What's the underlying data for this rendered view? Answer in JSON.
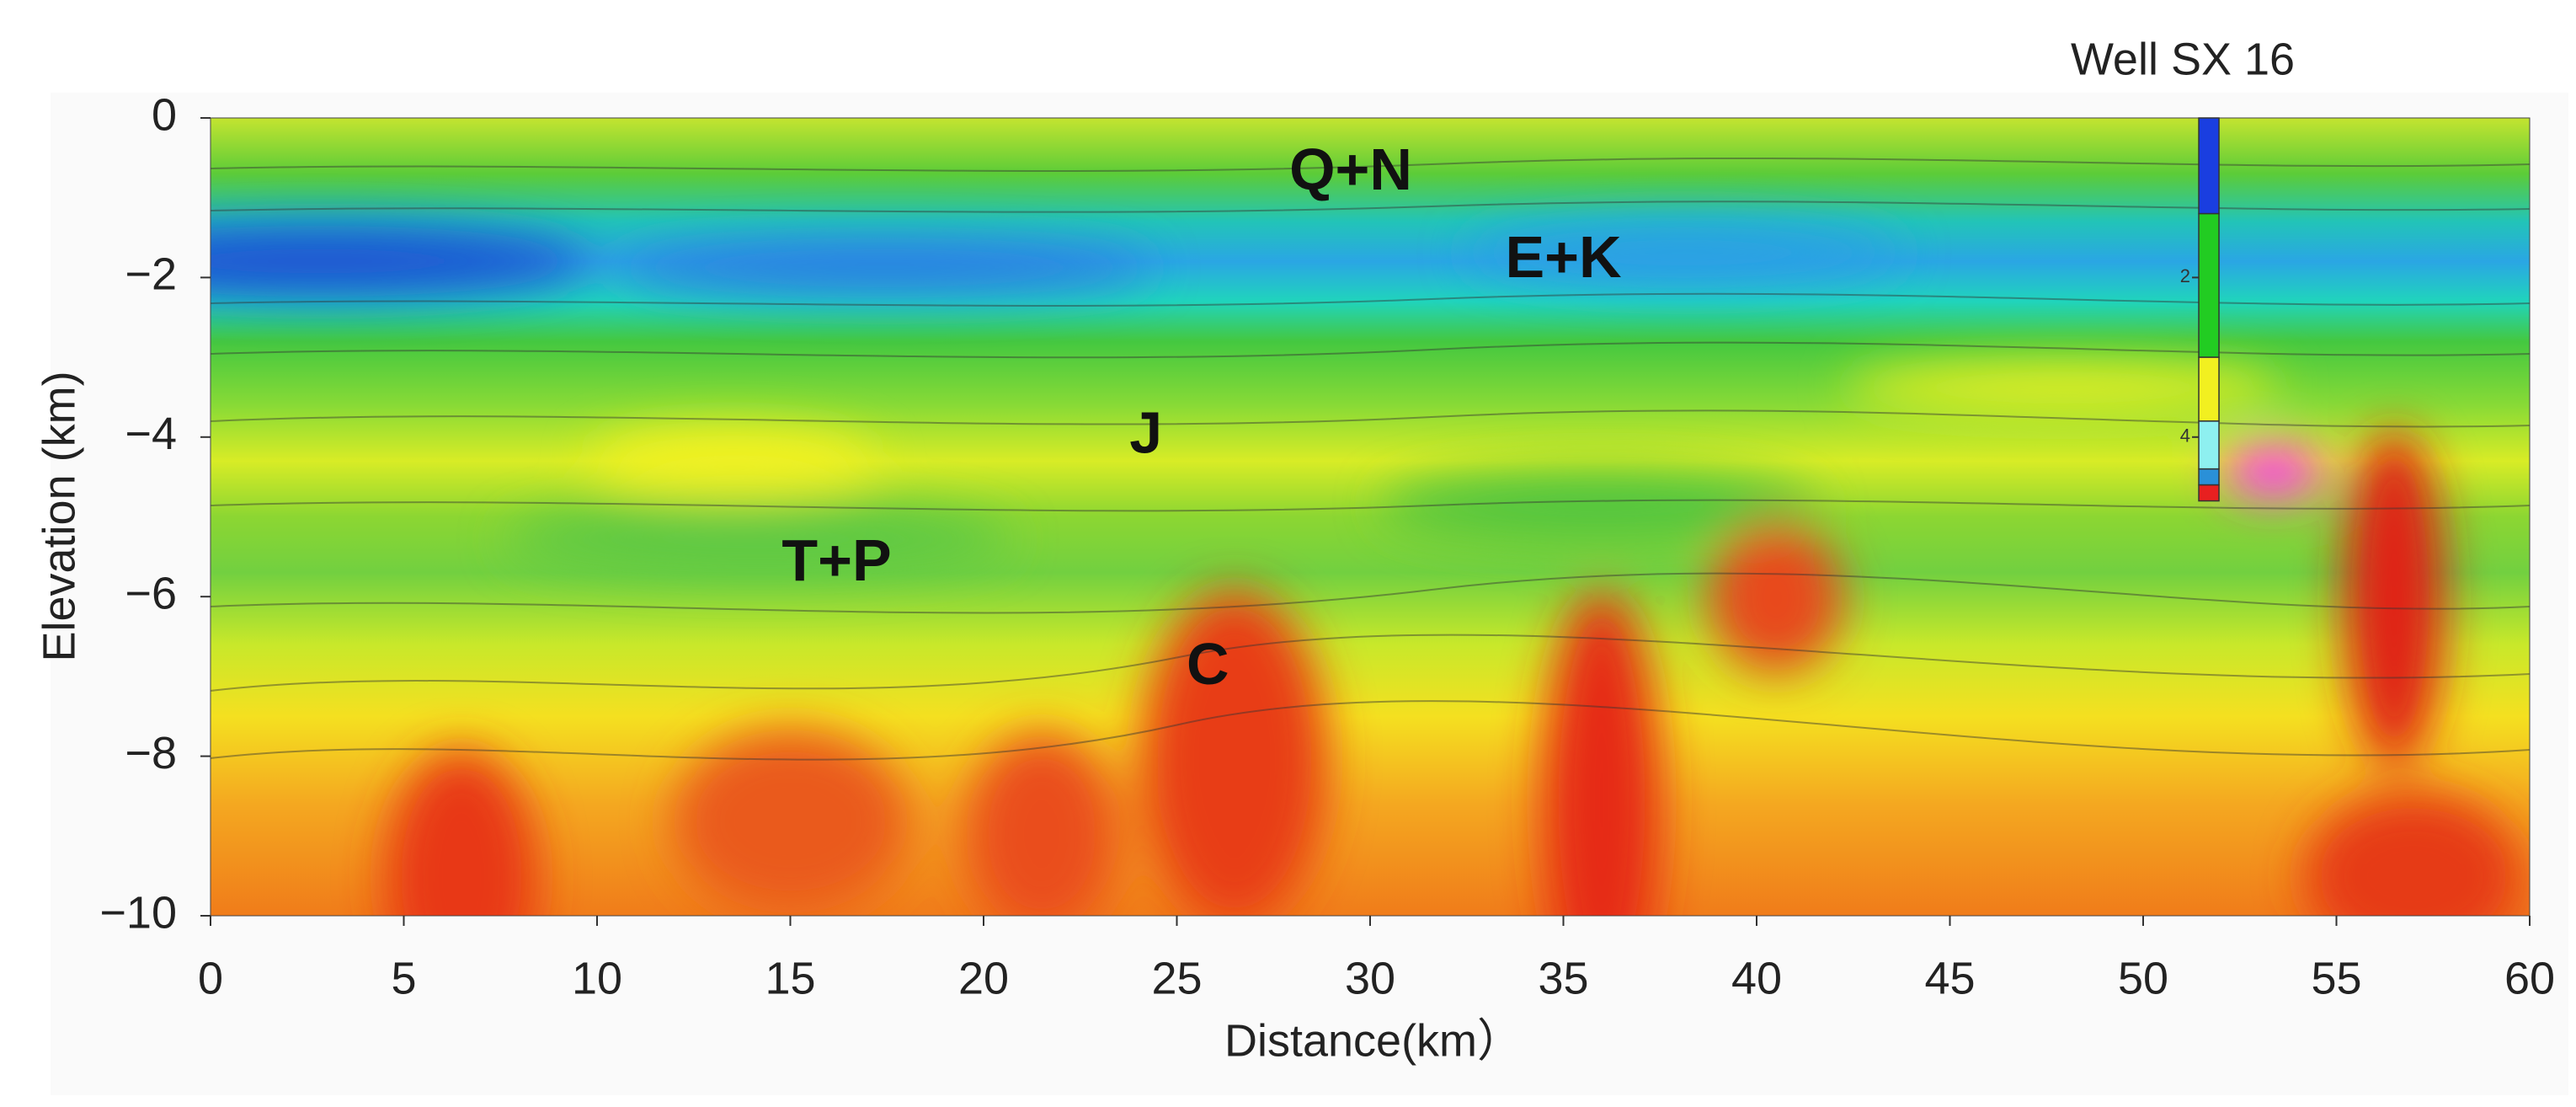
{
  "chart_data": {
    "type": "contour",
    "x_label": "Distance(km）",
    "y_label": "Elevation (km)",
    "xlim": [
      0,
      60
    ],
    "ylim": [
      -10,
      0
    ],
    "xticks": [
      0,
      5,
      10,
      15,
      20,
      25,
      30,
      35,
      40,
      45,
      50,
      55,
      60
    ],
    "yticks": [
      0,
      {
        "value": -2,
        "label": "−2"
      },
      {
        "value": -4,
        "label": "−4"
      },
      {
        "value": -6,
        "label": "−6"
      },
      {
        "value": -8,
        "label": "−8"
      },
      {
        "value": -10,
        "label": "−10"
      }
    ],
    "annotations": [
      {
        "text": "Q+N",
        "x": 29.5,
        "y": -0.7
      },
      {
        "text": "E+K",
        "x": 35,
        "y": -1.8
      },
      {
        "text": "J",
        "x": 24.2,
        "y": -4
      },
      {
        "text": "T+P",
        "x": 16.2,
        "y": -5.6
      },
      {
        "text": "C",
        "x": 25.8,
        "y": -6.9
      }
    ],
    "well": {
      "name": "Well SX 16",
      "x": 51.7,
      "ticks": [
        2,
        4
      ],
      "segments": [
        {
          "top": 0,
          "bottom": -1.2,
          "color": "#1a3ee0"
        },
        {
          "top": -1.2,
          "bottom": -3.0,
          "color": "#22cc22"
        },
        {
          "top": -3.0,
          "bottom": -3.8,
          "color": "#f2f020"
        },
        {
          "top": -3.8,
          "bottom": -4.4,
          "color": "#8ef0f0"
        },
        {
          "top": -4.4,
          "bottom": -4.6,
          "color": "#2a90d8"
        },
        {
          "top": -4.6,
          "bottom": -4.8,
          "color": "#e82020"
        }
      ]
    }
  }
}
